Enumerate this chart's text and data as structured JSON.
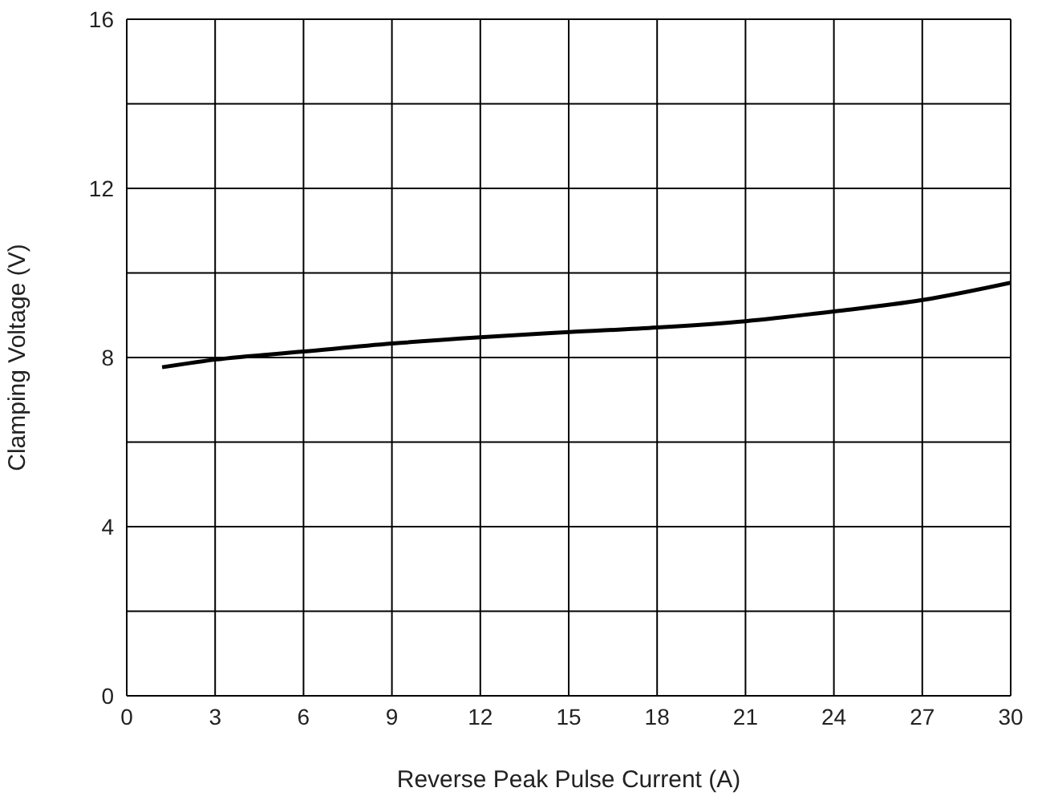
{
  "chart_data": {
    "type": "line",
    "xlabel": "Reverse Peak Pulse Current (A)",
    "ylabel": "Clamping Voltage (V)",
    "x": [
      1.2,
      3,
      6,
      9,
      12,
      15,
      18,
      21,
      24,
      27,
      30
    ],
    "series": [
      {
        "color": "#000000",
        "values": [
          7.77,
          7.95,
          8.14,
          8.33,
          8.48,
          8.6,
          8.71,
          8.86,
          9.09,
          9.36,
          9.77
        ]
      }
    ],
    "xlim": [
      0,
      30
    ],
    "xticks": [
      0,
      3,
      6,
      9,
      12,
      15,
      18,
      21,
      24,
      27,
      30
    ],
    "ylim": [
      0,
      16
    ],
    "yticks": [
      0,
      {
        "value": 2,
        "label": null
      },
      4,
      {
        "value": 6,
        "label": null
      },
      8,
      {
        "value": 10,
        "label": null
      },
      12,
      {
        "value": 14,
        "label": null
      },
      16
    ],
    "grid": true,
    "marker": "none",
    "line_style": "solid",
    "legend": false
  }
}
